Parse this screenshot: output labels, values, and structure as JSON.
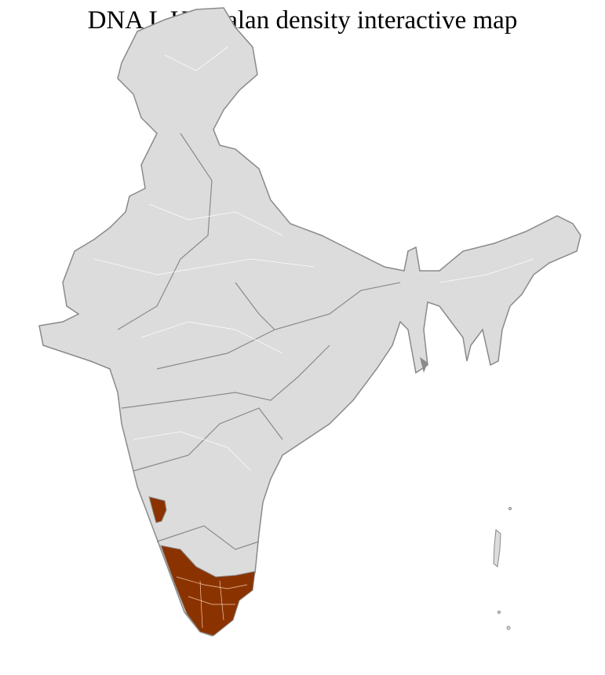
{
  "title": "DNA L Kakkalan density interactive map",
  "colors": {
    "base_fill": "#dcdcdc",
    "state_border": "#8a8a8a",
    "district_border": "#ffffff",
    "highlight_fill": "#8b3300",
    "highlight_border": "#f5c9a8"
  },
  "highlighted_regions": [
    "Goa / North Karnataka coast district",
    "Kerala",
    "Southern Tamil Nadu"
  ]
}
